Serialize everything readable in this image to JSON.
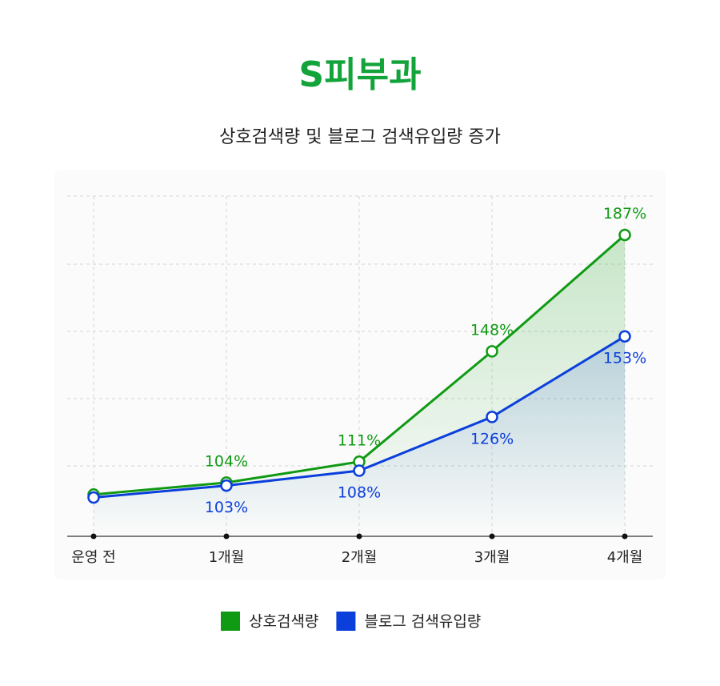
{
  "chart_data": {
    "type": "line",
    "title": "S피부과",
    "subtitle": "상호검색량 및 블로그 검색유입량 증가",
    "categories": [
      "운영 전",
      "1개월",
      "2개월",
      "3개월",
      "4개월"
    ],
    "series": [
      {
        "name": "상호검색량",
        "color": "#109a14",
        "values": [
          100,
          104,
          111,
          148,
          187
        ],
        "value_labels": [
          null,
          "104%",
          "111%",
          "148%",
          "187%"
        ]
      },
      {
        "name": "블로그 검색유입량",
        "color": "#0b3fdc",
        "values": [
          99,
          103,
          108,
          126,
          153
        ],
        "value_labels": [
          null,
          "103%",
          "108%",
          "126%",
          "153%"
        ]
      }
    ],
    "ylim": [
      86,
      200
    ],
    "legend": "bottom"
  }
}
